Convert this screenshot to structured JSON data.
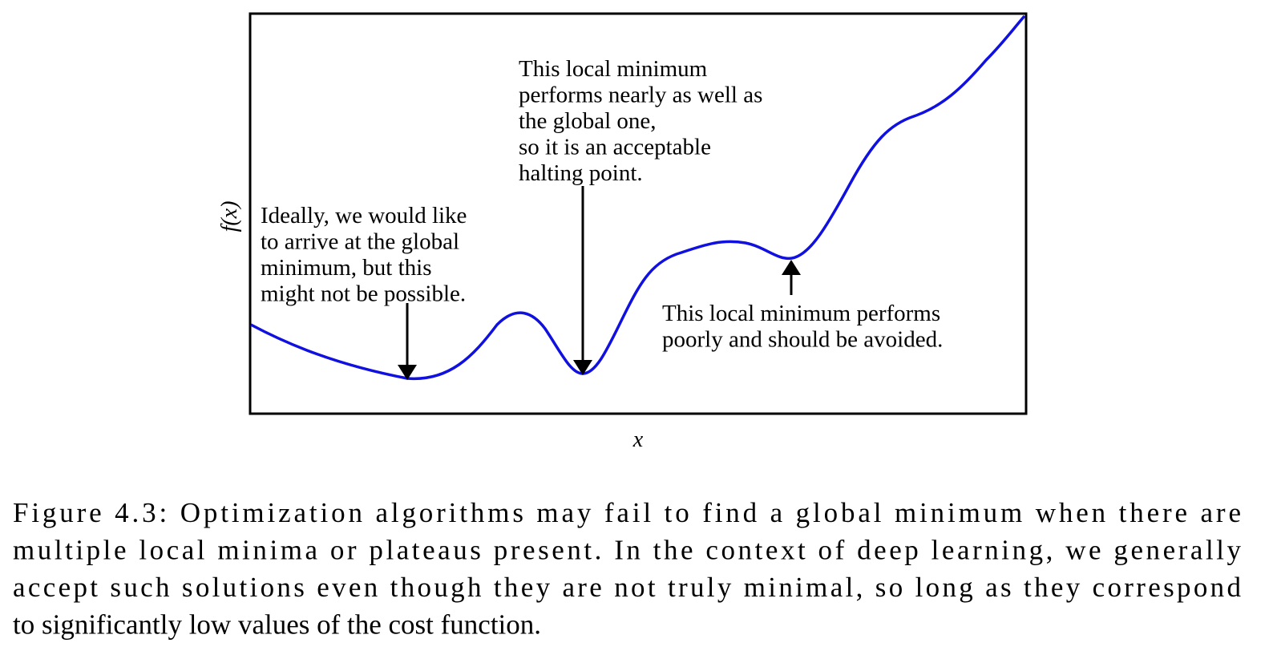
{
  "figure": {
    "ylabel": "f(x)",
    "xlabel": "x",
    "annotations": [
      {
        "lines": [
          "Ideally, we would like",
          "to arrive at the global",
          "minimum, but this",
          "might not be possible."
        ]
      },
      {
        "lines": [
          "This local minimum",
          "performs nearly as well as",
          "the global one,",
          "so it is an acceptable",
          "halting point."
        ]
      },
      {
        "lines": [
          "This local minimum performs",
          "poorly and should be avoided."
        ]
      }
    ]
  },
  "caption": {
    "lines": [
      "Figure 4.3: Optimization algorithms may fail to find a global minimum when there are",
      "multiple local minima or plateaus present. In the context of deep learning, we generally",
      "accept such solutions even though they are not truly minimal, so long as they correspond",
      "to significantly low values of the cost function."
    ]
  }
}
